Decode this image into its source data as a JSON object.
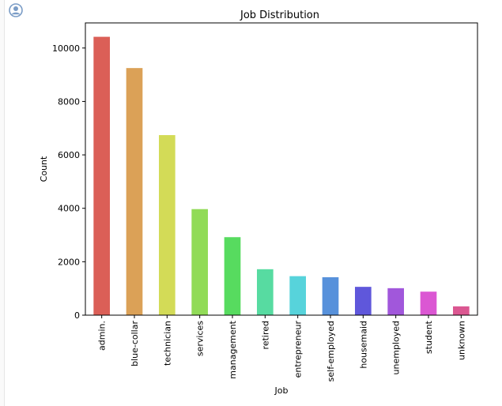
{
  "chart_data": {
    "type": "bar",
    "title": "Job Distribution",
    "xlabel": "Job",
    "ylabel": "Count",
    "categories": [
      "admin.",
      "blue-collar",
      "technician",
      "services",
      "management",
      "retired",
      "entrepreneur",
      "self-employed",
      "housemaid",
      "unemployed",
      "student",
      "unknown"
    ],
    "values": [
      10420,
      9250,
      6740,
      3970,
      2920,
      1720,
      1460,
      1420,
      1060,
      1010,
      880,
      330
    ],
    "ylim": [
      0,
      10940
    ],
    "yticks": [
      0,
      2000,
      4000,
      6000,
      8000,
      10000
    ],
    "grid": false,
    "legend": "none",
    "colors": [
      "#DB5F57",
      "#DBA157",
      "#D3DB57",
      "#91DB57",
      "#57DB5F",
      "#57DBA1",
      "#57D3DB",
      "#5791DB",
      "#5F57DB",
      "#A157DB",
      "#DB57D3",
      "#DB5791"
    ]
  },
  "icons": {
    "avatar": "user-avatar-icon"
  }
}
